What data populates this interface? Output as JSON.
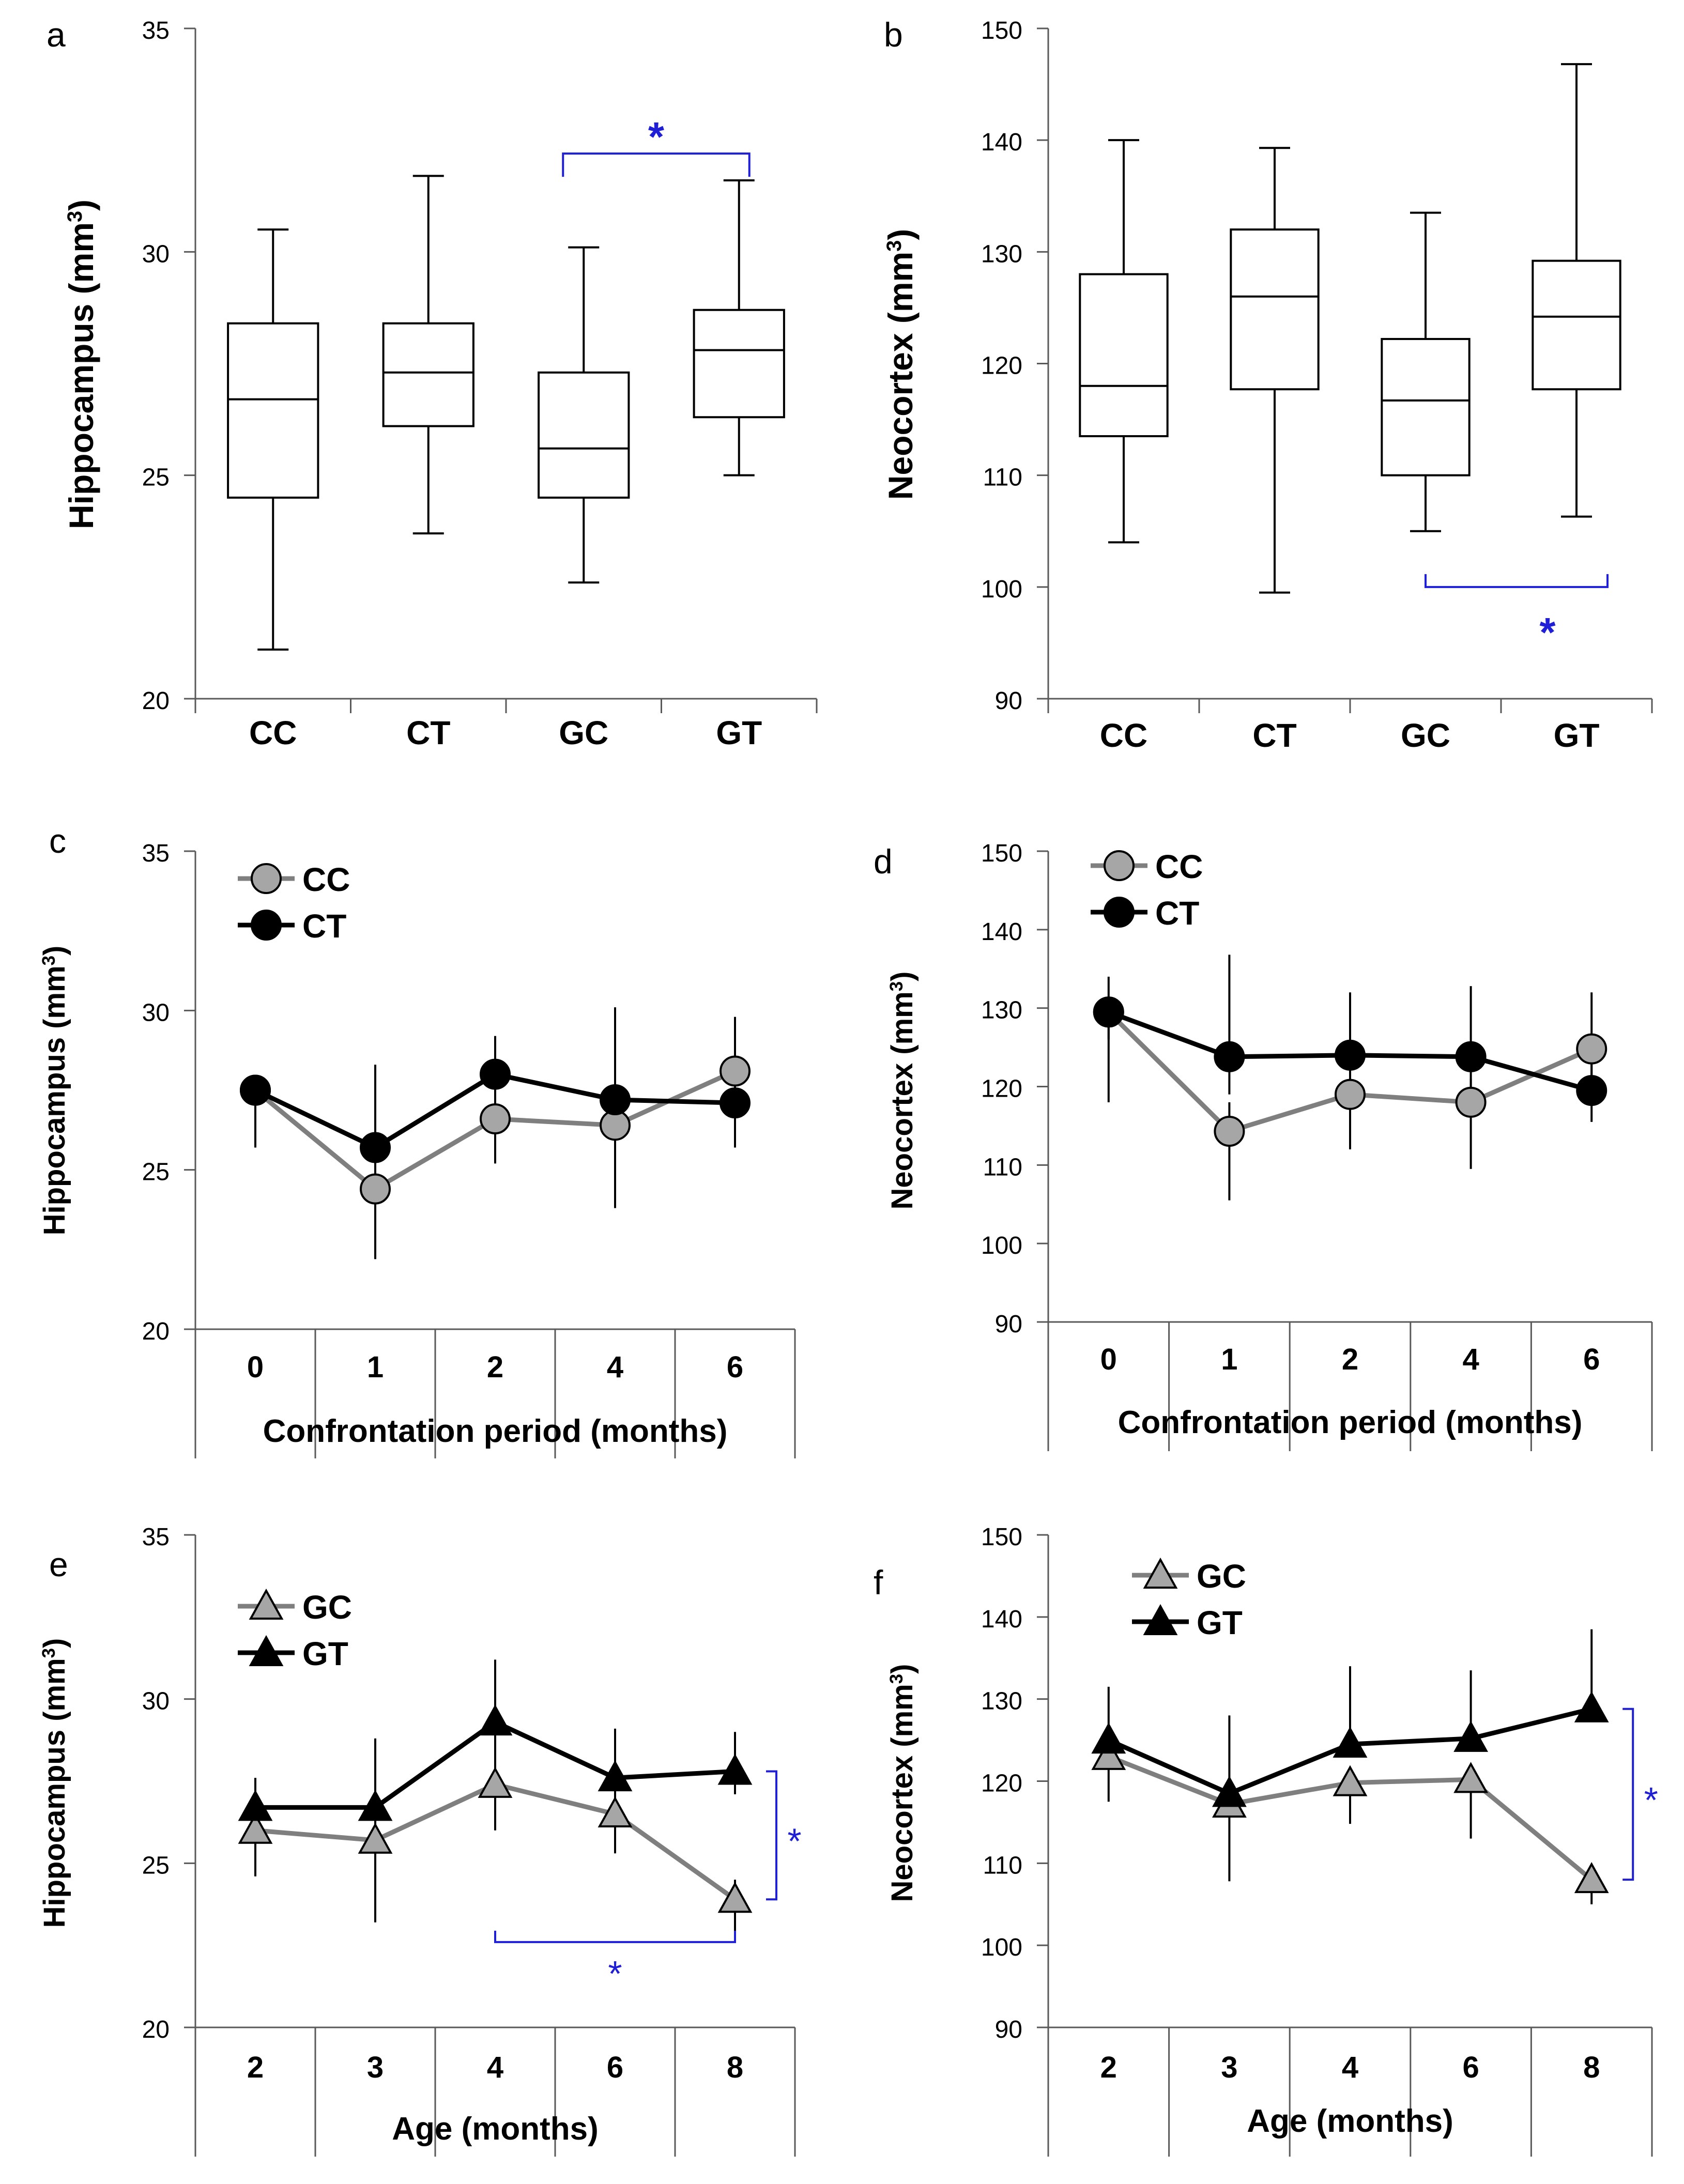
{
  "colors": {
    "axis": "#595959",
    "box": "#000000",
    "series_grey": "#7f7f7f",
    "marker_grey": "#a6a6a6",
    "series_black": "#000000",
    "significance": "#1f1fd6"
  },
  "chart_data": [
    {
      "panel": "a",
      "type": "box",
      "categories": [
        "CC",
        "CT",
        "GC",
        "GT"
      ],
      "ylabel_main": "Hippocampus (mm",
      "ylabel_sup": "3",
      "ylabel_close": ")",
      "ylim": [
        20,
        35
      ],
      "yticks": [
        20,
        25,
        30,
        35
      ],
      "boxes": [
        {
          "min": 21.1,
          "q1": 24.5,
          "median": 26.7,
          "q3": 28.4,
          "max": 30.5
        },
        {
          "min": 23.7,
          "q1": 26.1,
          "median": 27.3,
          "q3": 28.4,
          "max": 31.7
        },
        {
          "min": 22.6,
          "q1": 24.5,
          "median": 25.6,
          "q3": 27.3,
          "max": 30.1
        },
        {
          "min": 25.0,
          "q1": 26.3,
          "median": 27.8,
          "q3": 28.7,
          "max": 31.6
        }
      ],
      "significance": [
        {
          "from": "GC",
          "to": "GT",
          "label": "*",
          "position": "above"
        }
      ]
    },
    {
      "panel": "b",
      "type": "box",
      "categories": [
        "CC",
        "CT",
        "GC",
        "GT"
      ],
      "ylabel_main": "Neocortex (mm",
      "ylabel_sup": "3",
      "ylabel_close": ")",
      "ylim": [
        90,
        150
      ],
      "yticks": [
        90,
        100,
        110,
        120,
        130,
        140,
        150
      ],
      "boxes": [
        {
          "min": 104,
          "q1": 113.5,
          "median": 118,
          "q3": 128,
          "max": 140
        },
        {
          "min": 99.5,
          "q1": 117.7,
          "median": 126,
          "q3": 132,
          "max": 139.3
        },
        {
          "min": 105,
          "q1": 110,
          "median": 116.7,
          "q3": 122.2,
          "max": 133.5
        },
        {
          "min": 106.3,
          "q1": 117.7,
          "median": 124.2,
          "q3": 129.2,
          "max": 146.8
        }
      ],
      "significance": [
        {
          "from": "GC",
          "to": "GT",
          "label": "*",
          "position": "below"
        }
      ]
    },
    {
      "panel": "c",
      "type": "line",
      "categories": [
        "0",
        "1",
        "2",
        "4",
        "6"
      ],
      "xlabel": "Confrontation period (months)",
      "ylabel_main": "Hippocampus (mm",
      "ylabel_sup": "3",
      "ylabel_close": ")",
      "ylim": [
        20,
        35
      ],
      "yticks": [
        20,
        25,
        30,
        35
      ],
      "marker": "circle",
      "series": [
        {
          "name": "CC",
          "style": "grey",
          "values": [
            27.5,
            24.4,
            26.6,
            26.4,
            28.1
          ],
          "err_lo": [
            25.7,
            22.2,
            25.2,
            23.8,
            27.0
          ],
          "err_hi": [
            27.8,
            26.1,
            28.0,
            28.4,
            29.8
          ]
        },
        {
          "name": "CT",
          "style": "black",
          "values": [
            27.5,
            25.7,
            28.0,
            27.2,
            27.1
          ],
          "err_lo": [
            26.5,
            24.5,
            26.8,
            25.9,
            25.7
          ],
          "err_hi": [
            27.8,
            28.3,
            29.2,
            30.1,
            28.3
          ]
        }
      ]
    },
    {
      "panel": "d",
      "type": "line",
      "categories": [
        "0",
        "1",
        "2",
        "4",
        "6"
      ],
      "xlabel": "Confrontation period (months)",
      "ylabel_main": "Neocortex (mm",
      "ylabel_sup": "3",
      "ylabel_close": ")",
      "ylim": [
        90,
        150
      ],
      "yticks": [
        90,
        100,
        110,
        120,
        130,
        140,
        150
      ],
      "marker": "circle",
      "series": [
        {
          "name": "CC",
          "style": "grey",
          "values": [
            129.5,
            114.3,
            119.0,
            118.0,
            124.8
          ],
          "err_lo": [
            118.0,
            105.5,
            112.0,
            109.5,
            118.0
          ],
          "err_hi": [
            131.0,
            118.0,
            122.0,
            121.0,
            132.0
          ]
        },
        {
          "name": "CT",
          "style": "black",
          "values": [
            129.5,
            123.8,
            124.0,
            123.8,
            119.5
          ],
          "err_lo": [
            126.0,
            119.0,
            120.0,
            119.0,
            115.5
          ],
          "err_hi": [
            134.0,
            136.8,
            132.0,
            132.8,
            123.0
          ]
        }
      ]
    },
    {
      "panel": "e",
      "type": "line",
      "categories": [
        "2",
        "3",
        "4",
        "6",
        "8"
      ],
      "xlabel": "Age (months)",
      "ylabel_main": "Hippocampus (mm",
      "ylabel_sup": "3",
      "ylabel_close": ")",
      "ylim": [
        20,
        35
      ],
      "yticks": [
        20,
        25,
        30,
        35
      ],
      "marker": "triangle",
      "series": [
        {
          "name": "GC",
          "style": "grey",
          "values": [
            26.0,
            25.7,
            27.4,
            26.5,
            23.9
          ],
          "err_lo": [
            24.6,
            23.2,
            26.0,
            25.3,
            22.9
          ],
          "err_hi": [
            26.6,
            26.4,
            28.5,
            27.3,
            24.5
          ]
        },
        {
          "name": "GT",
          "style": "black",
          "values": [
            26.7,
            26.7,
            29.3,
            27.6,
            27.8
          ],
          "err_lo": [
            26.0,
            25.8,
            28.3,
            26.8,
            27.1
          ],
          "err_hi": [
            27.6,
            28.8,
            31.2,
            29.1,
            29.0
          ]
        }
      ],
      "significance": [
        {
          "from": "GC@8",
          "to": "GT@8",
          "label": "*",
          "position": "right"
        },
        {
          "from": "GC@4",
          "to": "GC@8",
          "label": "*",
          "position": "below"
        }
      ]
    },
    {
      "panel": "f",
      "type": "line",
      "categories": [
        "2",
        "3",
        "4",
        "6",
        "8"
      ],
      "xlabel": "Age (months)",
      "ylabel_main": "Neocortex (mm",
      "ylabel_sup": "3",
      "ylabel_close": ")",
      "ylim": [
        90,
        150
      ],
      "yticks": [
        90,
        100,
        110,
        120,
        130,
        140,
        150
      ],
      "marker": "triangle",
      "series": [
        {
          "name": "GC",
          "style": "grey",
          "values": [
            123.0,
            117.2,
            119.8,
            120.2,
            108.0
          ],
          "err_lo": [
            117.5,
            107.8,
            114.8,
            113.0,
            105.0
          ],
          "err_hi": [
            124.0,
            118.0,
            120.5,
            121.0,
            108.6
          ]
        },
        {
          "name": "GT",
          "style": "black",
          "values": [
            125.0,
            118.5,
            124.5,
            125.2,
            128.8
          ],
          "err_lo": [
            123.8,
            117.0,
            123.0,
            124.0,
            127.5
          ],
          "err_hi": [
            131.5,
            128.0,
            134.0,
            133.5,
            138.5
          ]
        }
      ],
      "significance": [
        {
          "from": "GC@8",
          "to": "GT@8",
          "label": "*",
          "position": "right"
        }
      ]
    }
  ]
}
